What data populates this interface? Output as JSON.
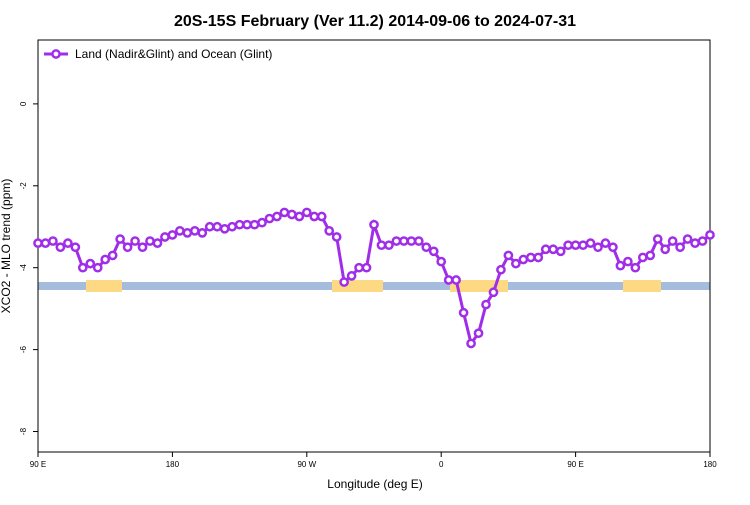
{
  "chart_data": {
    "type": "line",
    "title": "20S-15S February (Ver 11.2)   2014-09-06 to 2024-07-31",
    "x_label": "Longitude (deg E)",
    "y_label": "XCO2 - MLO trend (ppm)",
    "x": [
      90,
      95,
      100,
      105,
      110,
      115,
      120,
      125,
      130,
      135,
      140,
      145,
      150,
      155,
      160,
      165,
      170,
      175,
      180,
      185,
      190,
      195,
      200,
      205,
      210,
      215,
      220,
      225,
      230,
      235,
      240,
      245,
      250,
      255,
      260,
      265,
      270,
      275,
      280,
      285,
      290,
      295,
      300,
      305,
      310,
      315,
      320,
      325,
      330,
      335,
      340,
      345,
      350,
      355,
      360,
      365,
      370,
      375,
      380,
      385,
      390,
      395,
      400,
      405,
      410,
      415,
      420,
      425,
      430,
      435,
      440,
      445,
      450,
      455,
      460,
      465,
      470,
      475,
      480,
      485,
      490,
      495,
      500,
      505,
      510,
      515,
      520,
      525,
      530,
      535,
      540
    ],
    "series": [
      {
        "name": "Land (Nadir&Glint) and Ocean (Glint)",
        "color": "#a02ee8",
        "values": [
          -3.4,
          -3.4,
          -3.35,
          -3.5,
          -3.4,
          -3.5,
          -4.0,
          -3.9,
          -4.0,
          -3.8,
          -3.7,
          -3.3,
          -3.5,
          -3.35,
          -3.5,
          -3.35,
          -3.4,
          -3.25,
          -3.2,
          -3.1,
          -3.15,
          -3.1,
          -3.15,
          -3.0,
          -3.0,
          -3.05,
          -3.0,
          -2.95,
          -2.95,
          -2.95,
          -2.9,
          -2.8,
          -2.75,
          -2.65,
          -2.7,
          -2.75,
          -2.65,
          -2.75,
          -2.75,
          -3.1,
          -3.25,
          -4.35,
          -4.2,
          -4.0,
          -4.0,
          -2.95,
          -3.45,
          -3.45,
          -3.35,
          -3.35,
          -3.35,
          -3.35,
          -3.5,
          -3.6,
          -3.85,
          -4.3,
          -4.3,
          -5.1,
          -5.85,
          -5.6,
          -4.9,
          -4.6,
          -4.05,
          -3.7,
          -3.9,
          -3.8,
          -3.75,
          -3.75,
          -3.55,
          -3.55,
          -3.6,
          -3.45,
          -3.45,
          -3.45,
          -3.4,
          -3.5,
          -3.4,
          -3.5,
          -3.95,
          -3.85,
          -4.0,
          -3.75,
          -3.7,
          -3.3,
          -3.55,
          -3.35,
          -3.5,
          -3.3,
          -3.4,
          -3.35,
          -3.2
        ]
      }
    ],
    "xlim": [
      90,
      540
    ],
    "xticks": [
      {
        "value": 90,
        "label": "90 E"
      },
      180,
      {
        "value": 270,
        "label": "90 W"
      },
      {
        "value": 360,
        "label": "0"
      },
      {
        "value": 450,
        "label": "90 E"
      },
      {
        "value": 540,
        "label": "180"
      }
    ],
    "ylim": [
      -8.5,
      1.56
    ],
    "yticks": [
      0,
      -2,
      -4,
      -6,
      -8
    ],
    "legend": "top-left"
  }
}
